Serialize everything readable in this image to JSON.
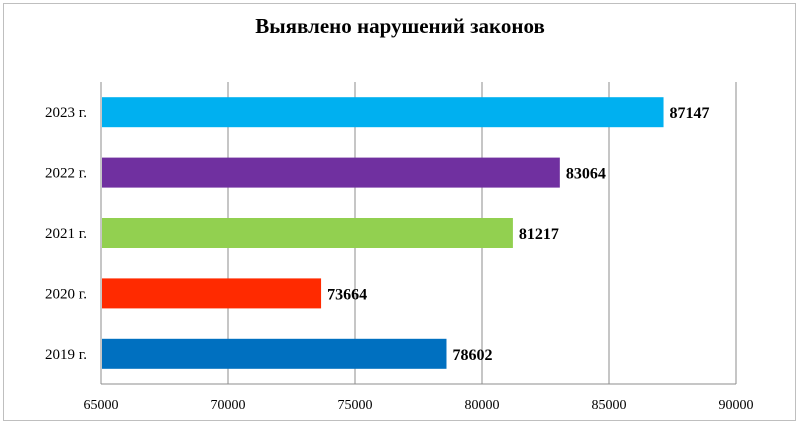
{
  "chart_data": {
    "type": "bar",
    "orientation": "horizontal",
    "title": "Выявлено нарушений законов",
    "categories": [
      "2023 г.",
      "2022 г.",
      "2021 г.",
      "2020 г.",
      "2019 г."
    ],
    "values": [
      87147,
      83064,
      81217,
      73664,
      78602
    ],
    "data_labels": [
      "87147",
      "83064",
      "81217",
      "73664",
      "78602"
    ],
    "colors": [
      "#00b0f0",
      "#7030a0",
      "#92d050",
      "#ff2a00",
      "#0070c0"
    ],
    "xlim": [
      65000,
      90000
    ],
    "x_ticks": [
      65000,
      70000,
      75000,
      80000,
      85000,
      90000
    ],
    "x_tick_labels": [
      "65000",
      "70000",
      "75000",
      "80000",
      "85000",
      "90000"
    ],
    "grid": true,
    "legend": "none"
  }
}
